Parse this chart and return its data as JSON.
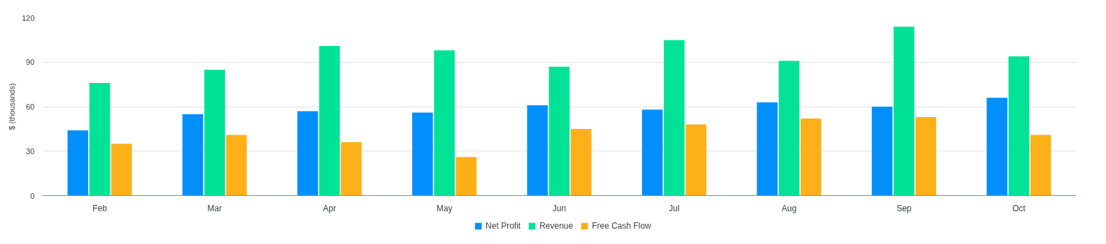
{
  "chart_data": {
    "type": "bar",
    "ylabel": "$ (thousands)",
    "categories": [
      "Feb",
      "Mar",
      "Apr",
      "May",
      "Jun",
      "Jul",
      "Aug",
      "Sep",
      "Oct"
    ],
    "series": [
      {
        "name": "Net Profit",
        "color": "#008ffb",
        "values": [
          44,
          55,
          57,
          56,
          61,
          58,
          63,
          60,
          66
        ]
      },
      {
        "name": "Revenue",
        "color": "#00e396",
        "values": [
          76,
          85,
          101,
          98,
          87,
          105,
          91,
          114,
          94
        ]
      },
      {
        "name": "Free Cash Flow",
        "color": "#feb019",
        "values": [
          35,
          41,
          36,
          26,
          45,
          48,
          52,
          53,
          41
        ]
      }
    ],
    "ylim": [
      0,
      120
    ],
    "yticks": [
      0,
      30,
      60,
      90,
      120
    ],
    "grid": "y",
    "legend": "bottom"
  }
}
